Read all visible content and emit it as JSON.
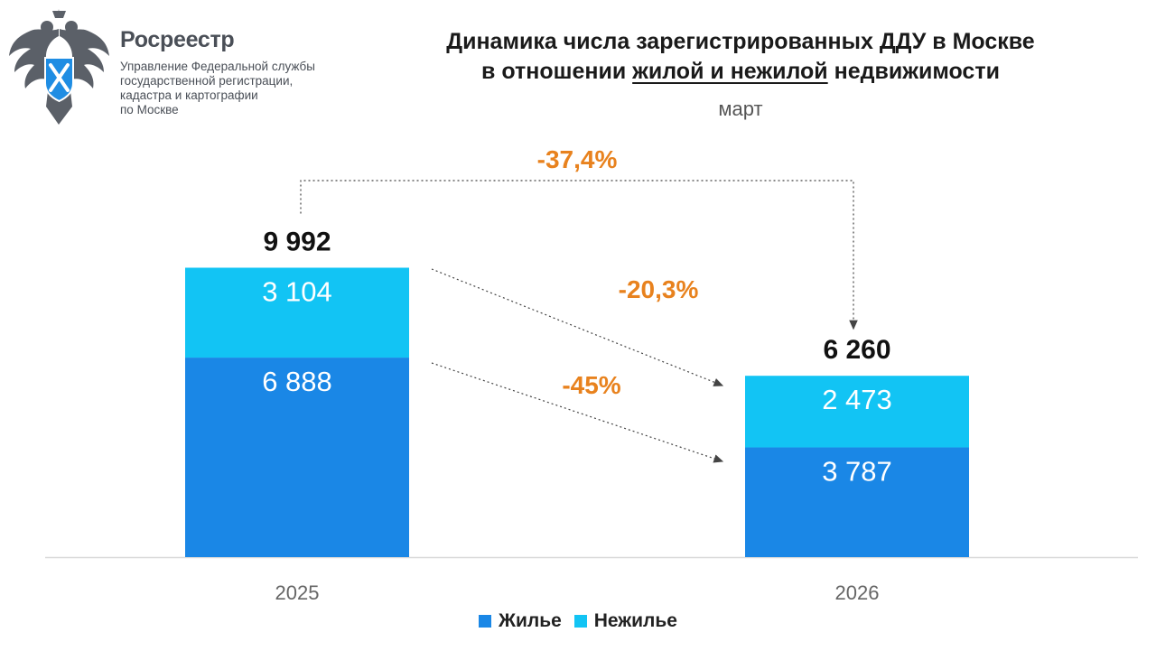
{
  "org": {
    "name": "Росреестр",
    "lines": [
      "Управление Федеральной службы",
      "государственной регистрации,",
      "кадастра и картографии",
      "по Москве"
    ]
  },
  "title": {
    "line1": "Динамика числа зарегистрированных ДДУ в Москве",
    "line2_prefix": "в отношении ",
    "line2_underlined": "жилой и нежилой",
    "line2_suffix": " недвижимости"
  },
  "colors": {
    "residential": "#1a87e6",
    "nonresidential": "#12c4f4",
    "accent": "#e8821e",
    "axis": "#d9d9d9"
  },
  "chart_data": {
    "type": "bar",
    "stacked": true,
    "subtitle": "март",
    "categories": [
      "2025",
      "2026"
    ],
    "series": [
      {
        "name": "Жилье",
        "values": [
          6888,
          3787
        ],
        "labels": [
          "6 888",
          "3 787"
        ]
      },
      {
        "name": "Нежилье",
        "values": [
          3104,
          2473
        ],
        "labels": [
          "3 104",
          "2 473"
        ]
      }
    ],
    "totals": [
      9992,
      6260
    ],
    "total_labels": [
      "9 992",
      "6 260"
    ],
    "changes": [
      {
        "label": "-37,4%",
        "target": "total"
      },
      {
        "label": "-20,3%",
        "target": "Нежилье"
      },
      {
        "label": "-45%",
        "target": "Жилье"
      }
    ],
    "ylim": [
      0,
      13000
    ],
    "grid": false,
    "legend_position": "bottom"
  }
}
